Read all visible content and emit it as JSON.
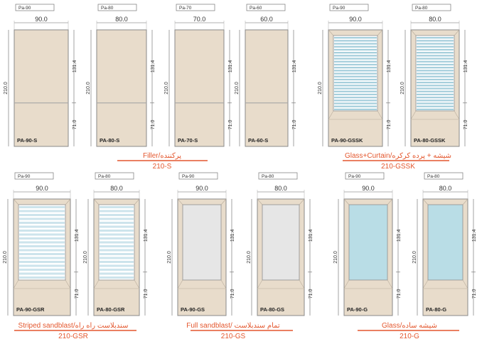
{
  "sections": [
    {
      "caption": "Filler/پرکننده",
      "code": "210-S",
      "doors": [
        {
          "tag": "Pa-90",
          "width": "90.0",
          "label": "PA-90-S",
          "fill": "solid"
        },
        {
          "tag": "Pa-80",
          "width": "80.0",
          "label": "PA-80-S",
          "fill": "solid"
        },
        {
          "tag": "Pa-70",
          "width": "70.0",
          "label": "PA-70-S",
          "fill": "solid"
        },
        {
          "tag": "Pa-60",
          "width": "60.0",
          "label": "PA-60-S",
          "fill": "solid"
        }
      ]
    },
    {
      "caption": "Glass+Curtain/شیشه + پرده کرکره",
      "code": "210-GSSK",
      "doors": [
        {
          "tag": "Pa-90",
          "width": "90.0",
          "label": "PA-90-GSSK",
          "fill": "curtain"
        },
        {
          "tag": "Pa-80",
          "width": "80.0",
          "label": "PA-80-GSSK",
          "fill": "curtain"
        }
      ]
    },
    {
      "caption": "Striped sandblast/سندبلاست راه راه",
      "code": "210-GSR",
      "doors": [
        {
          "tag": "Pa-90",
          "width": "90.0",
          "label": "PA-90-GSR",
          "fill": "striped"
        },
        {
          "tag": "Pa-80",
          "width": "80.0",
          "label": "PA-80-GSR",
          "fill": "striped"
        }
      ]
    },
    {
      "caption": "Full sandblast/ تمام سندبلاست",
      "code": "210-GS",
      "doors": [
        {
          "tag": "Pa-90",
          "width": "90.0",
          "label": "PA-90-GS",
          "fill": "sandblast"
        },
        {
          "tag": "Pa-80",
          "width": "80.0",
          "label": "PA-80-GS",
          "fill": "sandblast"
        }
      ]
    },
    {
      "caption": "Glass/شیشه ساده",
      "code": "210-G",
      "doors": [
        {
          "tag": "Pa-90",
          "width": "90.0",
          "label": "PA-90-G",
          "fill": "glass"
        },
        {
          "tag": "Pa-80",
          "width": "80.0",
          "label": "PA-80-G",
          "fill": "glass"
        }
      ]
    }
  ],
  "dims": {
    "height": "210.0",
    "upper": "131.4",
    "lower": "71.0"
  },
  "colors": {
    "panel": "#e8dccb",
    "frame": "#8a8a8a",
    "accent": "#e4572e",
    "glass": "#b9dde6",
    "sandblast": "#e6e6e6",
    "stripe": "#cde4ec"
  }
}
